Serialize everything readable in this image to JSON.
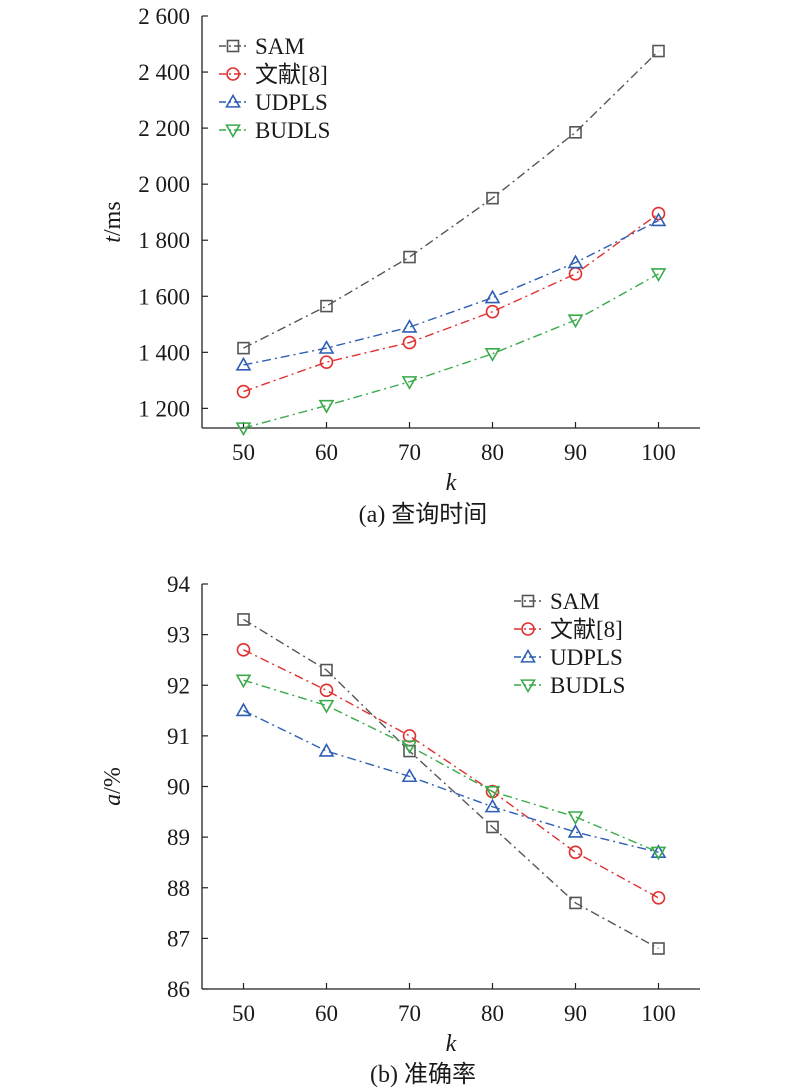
{
  "chart_data": [
    {
      "type": "line",
      "caption": "(a) 查询时间",
      "xlabel": "k",
      "ylabel_var": "t",
      "ylabel_unit": "/ms",
      "x": [
        50,
        60,
        70,
        80,
        90,
        100
      ],
      "xlim": [
        45,
        105
      ],
      "ylim": [
        1130,
        2600
      ],
      "yticks": [
        1200,
        1400,
        1600,
        1800,
        2000,
        2200,
        2400,
        2600
      ],
      "ytick_labels": [
        "1 200",
        "1 400",
        "1 600",
        "1 800",
        "2 000",
        "2 200",
        "2 400",
        "2 600"
      ],
      "xtick_labels": [
        "50",
        "60",
        "70",
        "80",
        "90",
        "100"
      ],
      "legend_position": "top-left",
      "grid": false,
      "series": [
        {
          "name": "SAM",
          "marker": "square",
          "color": "#555555",
          "values": [
            1415,
            1565,
            1740,
            1950,
            2185,
            2475
          ]
        },
        {
          "name": "文献[8]",
          "marker": "circle",
          "color": "#e03030",
          "values": [
            1260,
            1365,
            1435,
            1545,
            1680,
            1895
          ]
        },
        {
          "name": "UDPLS",
          "marker": "triangle-up",
          "color": "#2f5fb5",
          "values": [
            1355,
            1415,
            1490,
            1595,
            1720,
            1870
          ]
        },
        {
          "name": "BUDLS",
          "marker": "triangle-down",
          "color": "#3aaa4a",
          "values": [
            1130,
            1210,
            1295,
            1395,
            1515,
            1680
          ]
        }
      ]
    },
    {
      "type": "line",
      "caption": "(b) 准确率",
      "xlabel": "k",
      "ylabel_var": "a",
      "ylabel_unit": "/%",
      "x": [
        50,
        60,
        70,
        80,
        90,
        100
      ],
      "xlim": [
        45,
        105
      ],
      "ylim": [
        86,
        94
      ],
      "yticks": [
        86,
        87,
        88,
        89,
        90,
        91,
        92,
        93,
        94
      ],
      "ytick_labels": [
        "86",
        "87",
        "88",
        "89",
        "90",
        "91",
        "92",
        "93",
        "94"
      ],
      "xtick_labels": [
        "50",
        "60",
        "70",
        "80",
        "90",
        "100"
      ],
      "legend_position": "top-right",
      "grid": false,
      "series": [
        {
          "name": "SAM",
          "marker": "square",
          "color": "#555555",
          "values": [
            93.3,
            92.3,
            90.7,
            89.2,
            87.7,
            86.8
          ]
        },
        {
          "name": "文献[8]",
          "marker": "circle",
          "color": "#e03030",
          "values": [
            92.7,
            91.9,
            91.0,
            89.9,
            88.7,
            87.8
          ]
        },
        {
          "name": "UDPLS",
          "marker": "triangle-up",
          "color": "#2f5fb5",
          "values": [
            91.5,
            90.7,
            90.2,
            89.6,
            89.1,
            88.7
          ]
        },
        {
          "name": "BUDLS",
          "marker": "triangle-down",
          "color": "#3aaa4a",
          "values": [
            92.1,
            91.6,
            90.8,
            89.9,
            89.4,
            88.7
          ]
        }
      ]
    }
  ]
}
